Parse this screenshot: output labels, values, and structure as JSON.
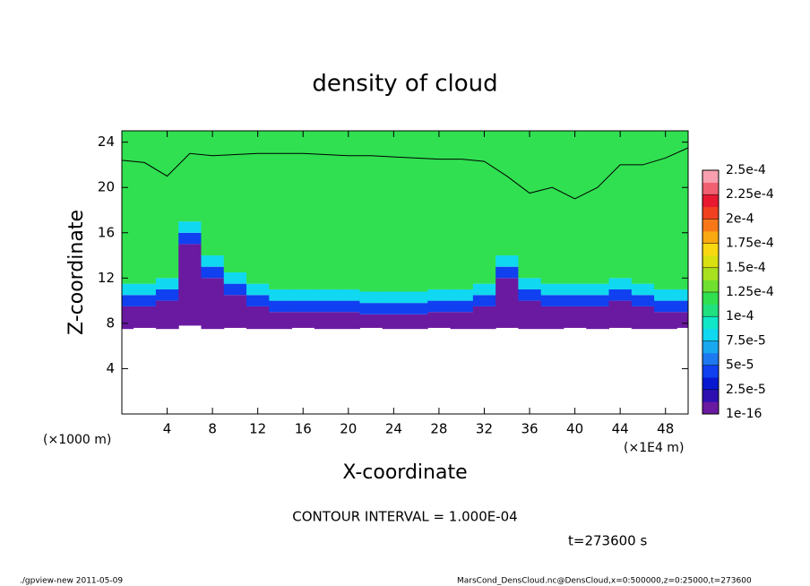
{
  "chart_data": {
    "type": "contour",
    "title": "density of cloud",
    "xlabel": "X-coordinate",
    "ylabel": "Z-coordinate",
    "x_scale_left": "(×1000 m)",
    "x_scale_right": "(×1E4 m)",
    "xlim": [
      0,
      50
    ],
    "xticks": [
      4,
      8,
      12,
      16,
      20,
      24,
      28,
      32,
      36,
      40,
      44,
      48
    ],
    "ylim": [
      0,
      25
    ],
    "yticks": [
      4,
      8,
      12,
      16,
      20,
      24
    ],
    "field": {
      "x": [
        0,
        2,
        4,
        6,
        8,
        10,
        12,
        14,
        16,
        18,
        20,
        22,
        24,
        26,
        28,
        30,
        32,
        34,
        36,
        38,
        40,
        42,
        44,
        46,
        48,
        50
      ],
      "bottom": [
        7.5,
        7.6,
        7.5,
        7.8,
        7.5,
        7.6,
        7.5,
        7.5,
        7.6,
        7.5,
        7.5,
        7.6,
        7.5,
        7.5,
        7.6,
        7.5,
        7.5,
        7.6,
        7.5,
        7.5,
        7.6,
        7.5,
        7.6,
        7.5,
        7.5,
        7.6
      ],
      "green_base": [
        11.5,
        11.5,
        12,
        17,
        14,
        12.5,
        11.5,
        11,
        11,
        11,
        11,
        10.8,
        10.8,
        10.8,
        11,
        11,
        11.5,
        14,
        12,
        11.5,
        11.5,
        11.5,
        12,
        11.5,
        11,
        11
      ],
      "contour_top": [
        22.4,
        22.2,
        21,
        23,
        22.8,
        22.9,
        23,
        23,
        23,
        22.9,
        22.8,
        22.8,
        22.7,
        22.6,
        22.5,
        22.5,
        22.3,
        21,
        19.5,
        20,
        19,
        20,
        22,
        22,
        22.6,
        23.5
      ]
    },
    "colorbar": {
      "lim": [
        0,
        0.00025
      ],
      "ticks": [
        {
          "value": 0,
          "label": "1e-16"
        },
        {
          "value": 2.5e-05,
          "label": "2.5e-5"
        },
        {
          "value": 5e-05,
          "label": "5e-5"
        },
        {
          "value": 7.5e-05,
          "label": "7.5e-5"
        },
        {
          "value": 0.0001,
          "label": "1e-4"
        },
        {
          "value": 0.000125,
          "label": "1.25e-4"
        },
        {
          "value": 0.00015,
          "label": "1.5e-4"
        },
        {
          "value": 0.000175,
          "label": "1.75e-4"
        },
        {
          "value": 0.0002,
          "label": "2e-4"
        },
        {
          "value": 0.000225,
          "label": "2.25e-4"
        },
        {
          "value": 0.00025,
          "label": "2.5e-4"
        }
      ],
      "colors": [
        "#6a1aa0",
        "#2e10b0",
        "#0818d0",
        "#1040f0",
        "#1e78f0",
        "#18a8f0",
        "#10d8f0",
        "#10e8c8",
        "#20e080",
        "#30e050",
        "#70e030",
        "#a8e020",
        "#d8e010",
        "#f8d810",
        "#f8a810",
        "#f87818",
        "#f04020",
        "#e81830",
        "#f06070",
        "#f8a0b0"
      ]
    },
    "contour_interval": "CONTOUR INTERVAL = 1.000E-04",
    "time": "t=273600 s",
    "footer_left": "./gpview-new   2011-05-09",
    "footer_right": "MarsCond_DensCloud.nc@DensCloud,x=0:500000,z=0:25000,t=273600"
  }
}
